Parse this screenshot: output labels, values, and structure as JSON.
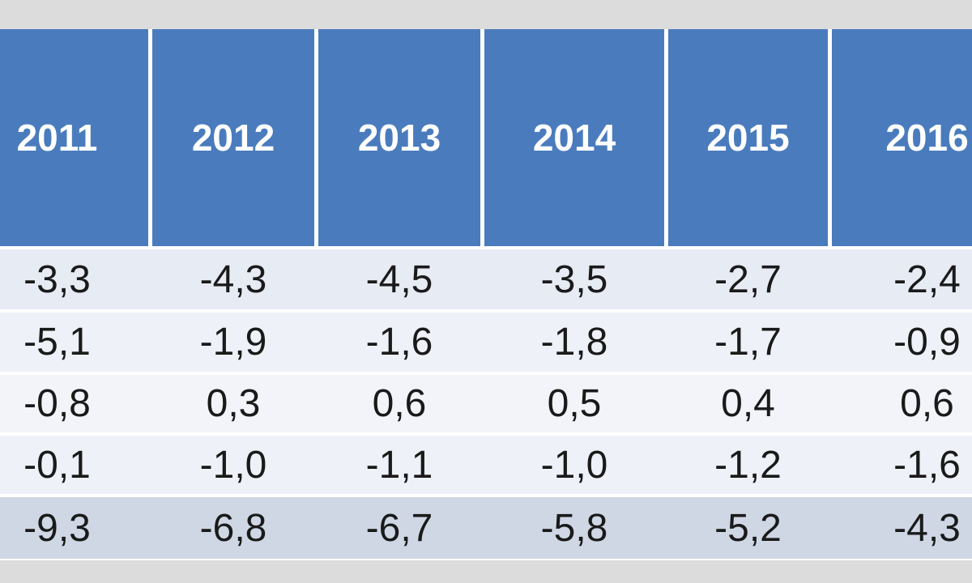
{
  "table": {
    "header": [
      "2011",
      "2012",
      "2013",
      "2014",
      "2015",
      "2016"
    ],
    "rows": [
      [
        "-3,3",
        "-4,3",
        "-4,5",
        "-3,5",
        "-2,7",
        "-2,4"
      ],
      [
        "-5,1",
        "-1,9",
        "-1,6",
        "-1,8",
        "-1,7",
        "-0,9"
      ],
      [
        "-0,8",
        "0,3",
        "0,6",
        "0,5",
        "0,4",
        "0,6"
      ],
      [
        "-0,1",
        "-1,0",
        "-1,1",
        "-1,0",
        "-1,2",
        "-1,6"
      ],
      [
        "-9,3",
        "-6,8",
        "-6,7",
        "-5,8",
        "-5,2",
        "-4,3"
      ]
    ]
  }
}
